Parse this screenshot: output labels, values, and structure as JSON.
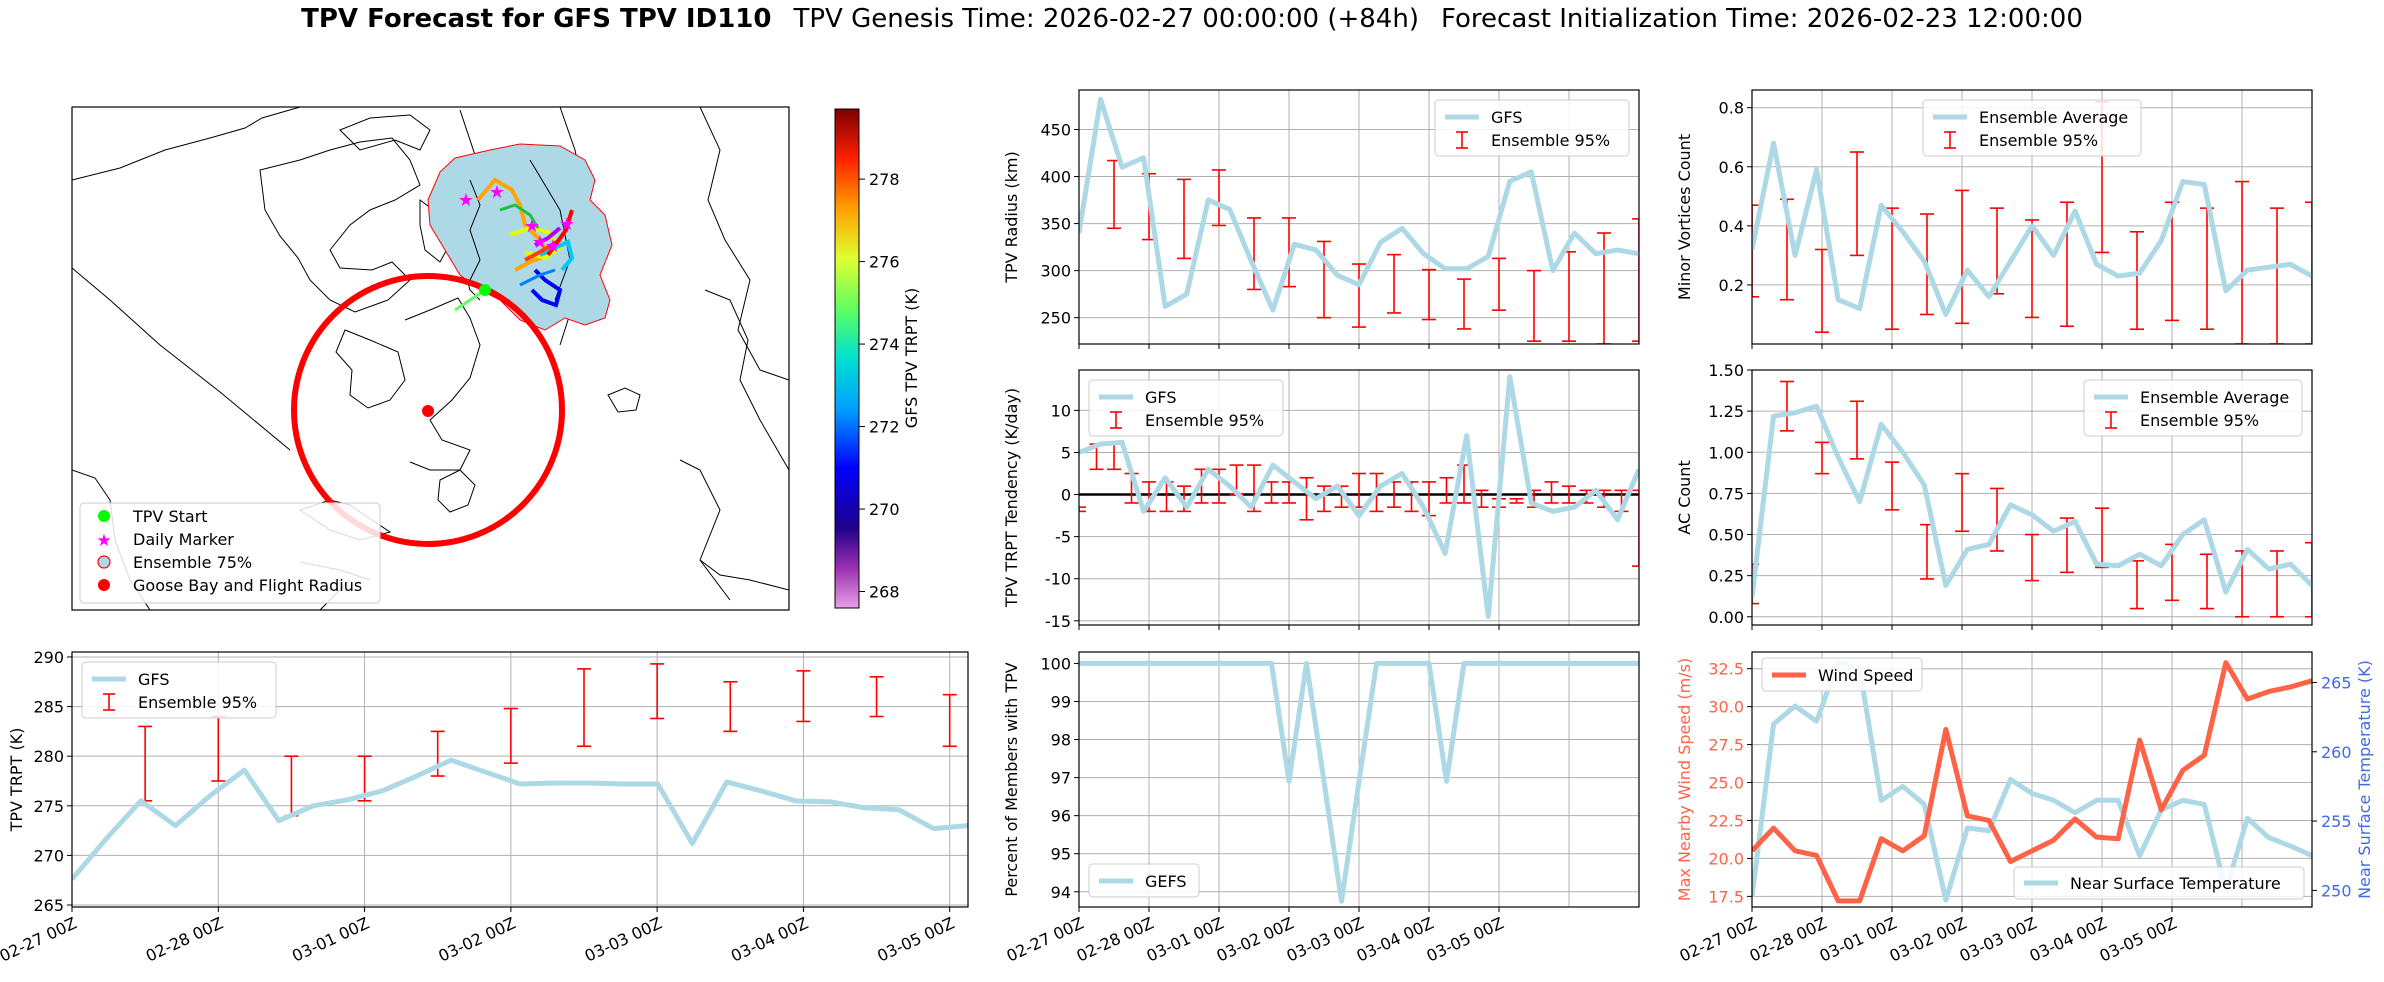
{
  "header": {
    "bold_title": "TPV Forecast for GFS TPV ID110",
    "genesis": "TPV Genesis Time: 2026-02-27 00:00:00 (+84h)",
    "init": "Forecast Initialization Time: 2026-02-23 12:00:00"
  },
  "colors": {
    "gfs_line": "#add8e6",
    "ensemble_err": "#ff0000",
    "wind": "#ff6347",
    "temp_axis": "#4169e1",
    "wind_axis": "#ff6347",
    "map_circle": "#ff0000",
    "tpv_start": "#00ff00",
    "daily_marker": "#ff00ff",
    "ensemble75_fill": "#add8e6"
  },
  "time_ticks": [
    "02-27 00Z",
    "02-28 00Z",
    "03-01 00Z",
    "03-02 00Z",
    "03-03 00Z",
    "03-04 00Z",
    "03-05 00Z"
  ],
  "map": {
    "legend": [
      "TPV Start",
      "Daily Marker",
      "Ensemble 75%",
      "Goose Bay and Flight Radius"
    ],
    "colorbar": {
      "label": "GFS TPV TRPT (K)",
      "min": 267.6,
      "max": 279.7,
      "ticks": [
        268,
        270,
        272,
        274,
        276,
        278
      ]
    }
  },
  "chart_data": [
    {
      "id": "radius",
      "type": "line",
      "title": "",
      "xlabel": "",
      "ylabel": "TPV Radius (km)",
      "xlim": [
        0,
        32
      ],
      "ylim": [
        222,
        492
      ],
      "yticks": [
        250,
        300,
        350,
        400,
        450
      ],
      "series": [
        {
          "name": "GFS",
          "values": [
            340,
            482,
            410,
            420,
            262,
            275,
            375,
            365,
            310,
            258,
            328,
            322,
            295,
            285,
            330,
            345,
            318,
            302,
            302,
            315,
            395,
            405,
            300,
            340,
            318,
            322,
            318
          ]
        }
      ],
      "errorbars": {
        "name": "Ensemble 95%",
        "x": [
          2,
          4,
          6,
          8,
          10,
          12,
          14,
          16,
          18,
          20,
          22,
          24,
          26,
          28,
          30,
          32
        ],
        "low": [
          345,
          333,
          313,
          348,
          280,
          283,
          250,
          240,
          255,
          248,
          238,
          258,
          225,
          225,
          222,
          225
        ],
        "high": [
          417,
          403,
          397,
          407,
          356,
          356,
          331,
          307,
          317,
          301,
          291,
          313,
          300,
          320,
          340,
          355
        ]
      }
    },
    {
      "id": "minor",
      "type": "line",
      "title": "",
      "xlabel": "",
      "ylabel": "Minor Vortices Count",
      "xlim": [
        0,
        32
      ],
      "ylim": [
        0.0,
        0.86
      ],
      "yticks": [
        0.2,
        0.4,
        0.6,
        0.8
      ],
      "series": [
        {
          "name": "Ensemble Average",
          "values": [
            0.32,
            0.68,
            0.3,
            0.59,
            0.15,
            0.12,
            0.47,
            0.38,
            0.28,
            0.1,
            0.25,
            0.16,
            0.28,
            0.4,
            0.3,
            0.45,
            0.27,
            0.23,
            0.24,
            0.35,
            0.55,
            0.54,
            0.18,
            0.25,
            0.26,
            0.27,
            0.23
          ]
        }
      ],
      "errorbars": {
        "name": "Ensemble 95%",
        "x": [
          0,
          2,
          4,
          6,
          8,
          10,
          12,
          14,
          16,
          18,
          20,
          22,
          24,
          26,
          28,
          30,
          32
        ],
        "low": [
          0.16,
          0.15,
          0.04,
          0.3,
          0.05,
          0.1,
          0.07,
          0.17,
          0.09,
          0.06,
          0.31,
          0.05,
          0.08,
          0.05,
          0.0,
          0.0,
          0.0
        ],
        "high": [
          0.47,
          0.49,
          0.32,
          0.65,
          0.46,
          0.44,
          0.52,
          0.46,
          0.42,
          0.48,
          0.82,
          0.38,
          0.48,
          0.46,
          0.55,
          0.46,
          0.48
        ]
      }
    },
    {
      "id": "tendency",
      "type": "line",
      "title": "",
      "xlabel": "",
      "ylabel": "TPV TRPT Tendency (K/day)",
      "xlim": [
        0,
        32
      ],
      "ylim": [
        -15.5,
        14.8
      ],
      "yticks": [
        -15,
        -10,
        -5,
        0,
        5,
        10
      ],
      "zero_line": true,
      "series": [
        {
          "name": "GFS",
          "values": [
            5.0,
            6.0,
            6.2,
            -2.0,
            2.0,
            -1.5,
            3.0,
            1.0,
            -1.5,
            3.5,
            1.5,
            -0.5,
            1.0,
            -2.5,
            1.0,
            2.5,
            -1.5,
            -7.0,
            7.0,
            -14.5,
            14.0,
            -1.0,
            -2.0,
            -1.5,
            0.5,
            -3.0,
            3.0
          ]
        }
      ],
      "errorbars": {
        "name": "Ensemble 95%",
        "x": [
          0,
          1,
          2,
          3,
          4,
          5,
          6,
          7,
          8,
          9,
          10,
          11,
          12,
          13,
          14,
          15,
          16,
          17,
          18,
          19,
          20,
          21,
          22,
          23,
          24,
          25,
          26,
          27,
          28,
          29,
          30,
          31,
          32
        ],
        "low": [
          -2.0,
          3.0,
          3.0,
          -1.0,
          -2.0,
          -2.0,
          -2.0,
          -1.0,
          -1.0,
          0.0,
          -2.0,
          -1.0,
          -1.0,
          -3.0,
          -2.0,
          -1.5,
          -1.5,
          -2.0,
          -1.5,
          -2.0,
          -2.5,
          -1.0,
          -1.0,
          -1.5,
          -1.5,
          -1.0,
          -1.5,
          -1.0,
          -1.0,
          -1.0,
          -1.5,
          -2.0,
          -8.5
        ],
        "high": [
          -1.5,
          6.0,
          6.0,
          2.5,
          1.5,
          1.5,
          1.0,
          3.0,
          3.0,
          3.5,
          3.5,
          1.5,
          1.5,
          2.0,
          1.0,
          1.0,
          2.5,
          2.5,
          1.5,
          1.5,
          1.5,
          2.0,
          3.5,
          0.5,
          -0.5,
          -0.5,
          0.5,
          1.5,
          1.0,
          0.5,
          0.5,
          0.5,
          0.5
        ]
      }
    },
    {
      "id": "ac",
      "type": "line",
      "title": "",
      "xlabel": "",
      "ylabel": "AC Count",
      "xlim": [
        0,
        32
      ],
      "ylim": [
        -0.05,
        1.5
      ],
      "yticks": [
        0.0,
        0.25,
        0.5,
        0.75,
        1.0,
        1.25,
        1.5
      ],
      "series": [
        {
          "name": "Ensemble Average",
          "values": [
            0.12,
            1.22,
            1.24,
            1.28,
            0.97,
            0.7,
            1.17,
            1.0,
            0.8,
            0.19,
            0.41,
            0.44,
            0.68,
            0.62,
            0.52,
            0.58,
            0.32,
            0.31,
            0.38,
            0.31,
            0.5,
            0.59,
            0.15,
            0.41,
            0.29,
            0.32,
            0.19
          ]
        }
      ],
      "errorbars": {
        "name": "Ensemble 95%",
        "x": [
          0,
          2,
          4,
          6,
          8,
          10,
          12,
          14,
          16,
          18,
          20,
          22,
          24,
          26,
          28,
          30,
          32
        ],
        "low": [
          0.08,
          1.13,
          0.87,
          0.96,
          0.65,
          0.23,
          0.52,
          0.4,
          0.22,
          0.27,
          0.3,
          0.05,
          0.1,
          0.05,
          0.0,
          0.0,
          0.0
        ],
        "high": [
          0.32,
          1.43,
          1.06,
          1.31,
          0.94,
          0.56,
          0.87,
          0.78,
          0.5,
          0.6,
          0.66,
          0.34,
          0.44,
          0.38,
          0.4,
          0.4,
          0.45
        ]
      }
    },
    {
      "id": "trpt",
      "type": "line",
      "title": "",
      "xlabel": "",
      "ylabel": "TPV TRPT (K)",
      "xlim": [
        0,
        24.5
      ],
      "ylim": [
        264.8,
        290.5
      ],
      "yticks": [
        265,
        270,
        275,
        280,
        285,
        290
      ],
      "series": [
        {
          "name": "GFS",
          "values": [
            267.6,
            271.7,
            275.5,
            273.0,
            276.0,
            278.6,
            273.5,
            275.0,
            275.6,
            276.5,
            278.0,
            279.6,
            278.4,
            277.2,
            277.3,
            277.3,
            277.2,
            277.2,
            271.2,
            277.4,
            276.5,
            275.5,
            275.4,
            274.8,
            274.6,
            272.7,
            273.0
          ]
        }
      ],
      "errorbars": {
        "name": "Ensemble 95%",
        "x": [
          2,
          4,
          6,
          8,
          10,
          12,
          14,
          16,
          18,
          20,
          22,
          24,
          26
        ],
        "low": [
          275.5,
          277.5,
          274.0,
          275.5,
          278.0,
          279.3,
          281.0,
          283.8,
          282.5,
          283.5,
          284.0,
          281.0,
          279.0
        ],
        "high": [
          283.0,
          284.0,
          280.0,
          280.0,
          282.5,
          284.8,
          288.8,
          289.3,
          287.5,
          288.6,
          288.0,
          286.2,
          285.0
        ]
      }
    },
    {
      "id": "percent",
      "type": "line",
      "title": "",
      "xlabel": "",
      "ylabel": "Percent of Members with TPV",
      "xlim": [
        0,
        32
      ],
      "ylim": [
        93.6,
        100.3
      ],
      "yticks": [
        94,
        95,
        96,
        97,
        98,
        99,
        100
      ],
      "series": [
        {
          "name": "GEFS",
          "values": [
            100,
            100,
            100,
            100,
            100,
            100,
            100,
            100,
            100,
            100,
            100,
            100,
            96.9,
            100,
            96.9,
            93.75,
            96.9,
            100,
            100,
            100,
            100,
            96.9,
            100,
            100,
            100,
            100,
            100,
            100,
            100,
            100,
            100,
            100,
            100
          ]
        }
      ]
    },
    {
      "id": "wind",
      "type": "line",
      "title": "",
      "xlabel": "",
      "ylabel": "Max Nearby Wind Speed (m/s)",
      "xlim": [
        0,
        32
      ],
      "ylim": [
        16.8,
        33.6
      ],
      "yticks": [
        17.5,
        20.0,
        22.5,
        25.0,
        27.5,
        30.0,
        32.5
      ],
      "series": [
        {
          "name": "Wind Speed",
          "values": [
            20.5,
            22.0,
            20.5,
            20.2,
            17.2,
            17.2,
            21.3,
            20.5,
            21.5,
            28.5,
            22.8,
            22.5,
            19.8,
            20.5,
            21.2,
            22.6,
            21.4,
            21.3,
            27.8,
            23.2,
            25.8,
            26.8,
            32.9,
            30.5,
            31.0,
            31.3,
            31.7
          ]
        }
      ],
      "y2": {
        "ylabel": "Near Surface Temperature (K)",
        "ylim": [
          248.8,
          267.2
        ],
        "yticks": [
          250,
          255,
          260,
          265
        ],
        "series": [
          {
            "name": "Near Surface Temperature",
            "values": [
              249.5,
              262.0,
              263.3,
              262.2,
              266.5,
              266.0,
              256.5,
              257.5,
              256.2,
              249.3,
              254.5,
              254.3,
              258.0,
              257.0,
              256.5,
              255.6,
              256.5,
              256.5,
              252.5,
              255.8,
              256.5,
              256.2,
              250.0,
              255.2,
              253.8,
              253.2,
              252.5
            ]
          }
        ]
      }
    }
  ]
}
